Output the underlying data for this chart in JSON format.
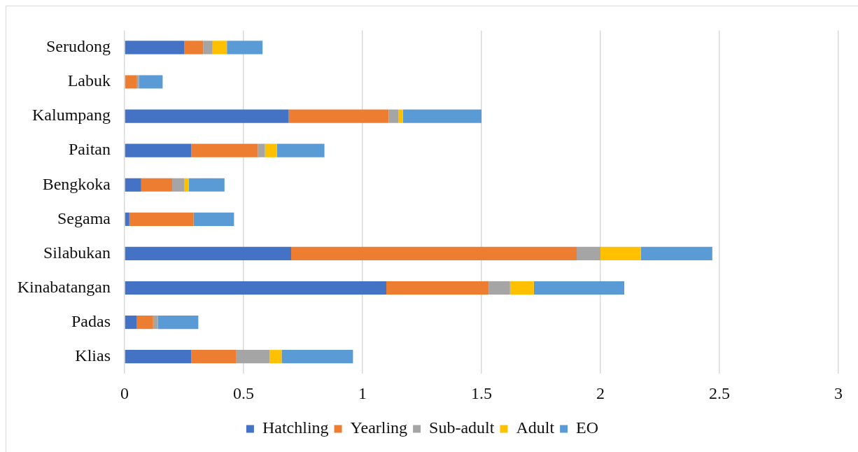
{
  "chart_data": {
    "type": "bar",
    "orientation": "horizontal",
    "stacked": true,
    "categories": [
      "Serudong",
      "Labuk",
      "Kalumpang",
      "Paitan",
      "Bengkoka",
      "Segama",
      "Silabukan",
      "Kinabatangan",
      "Padas",
      "Klias"
    ],
    "series": [
      {
        "name": "Hatchling",
        "color": "#4472c4",
        "values": [
          0.25,
          0,
          0.69,
          0.28,
          0.07,
          0.02,
          0.7,
          1.1,
          0.05,
          0.28
        ]
      },
      {
        "name": "Yearling",
        "color": "#ed7d31",
        "values": [
          0.08,
          0.05,
          0.42,
          0.28,
          0.13,
          0.27,
          1.2,
          0.43,
          0.07,
          0.19
        ]
      },
      {
        "name": "Sub-adult",
        "color": "#a5a5a5",
        "values": [
          0.04,
          0.01,
          0.04,
          0.03,
          0.05,
          0,
          0.1,
          0.09,
          0.02,
          0.14
        ]
      },
      {
        "name": "Adult",
        "color": "#ffc000",
        "values": [
          0.06,
          0,
          0.02,
          0.05,
          0.02,
          0,
          0.17,
          0.1,
          0,
          0.05
        ]
      },
      {
        "name": "EO",
        "color": "#5b9bd5",
        "values": [
          0.15,
          0.1,
          0.33,
          0.2,
          0.15,
          0.17,
          0.3,
          0.38,
          0.17,
          0.3
        ]
      }
    ],
    "xlim": [
      0,
      3
    ],
    "xticks": [
      0,
      0.5,
      1,
      1.5,
      2,
      2.5,
      3
    ],
    "grid": "x",
    "legend": "bottom"
  }
}
